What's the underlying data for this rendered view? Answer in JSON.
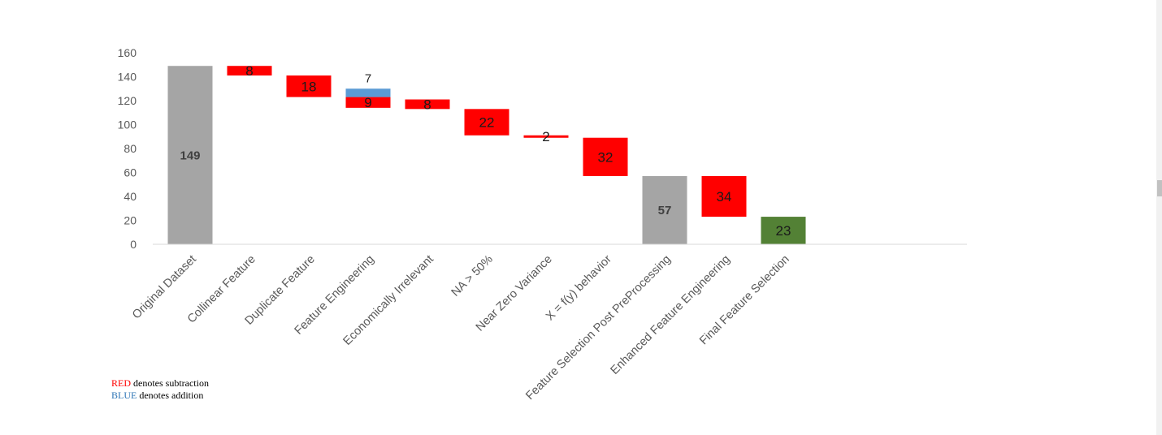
{
  "chart_data": {
    "type": "waterfall",
    "categories": [
      "Original Dataset",
      "Collinear Feature",
      "Duplicate Feature",
      "Feature Engineering",
      "Economically Irrelevant",
      "NA > 50%",
      "Near Zero Variance",
      "X = f(y) behavior",
      "Feature Selection Post PreProcessing",
      "Enhanced Feature Engineering",
      "Final Feature Selection"
    ],
    "bars": [
      {
        "category": "Original Dataset",
        "kind": "total",
        "base": 0,
        "top": 149,
        "label": "149",
        "color": "#a5a5a5"
      },
      {
        "category": "Collinear Feature",
        "kind": "decrease",
        "base": 141,
        "top": 149,
        "label": "8",
        "color": "#ff0000"
      },
      {
        "category": "Duplicate Feature",
        "kind": "decrease",
        "base": 123,
        "top": 141,
        "label": "18",
        "color": "#ff0000"
      },
      {
        "category": "Feature Engineering",
        "kind": "decrease",
        "base": 114,
        "top": 123,
        "label": "9",
        "color": "#ff0000"
      },
      {
        "category": "Feature Engineering",
        "kind": "increase",
        "base": 123,
        "top": 130,
        "label": "7",
        "color": "#5b9bd5"
      },
      {
        "category": "Economically Irrelevant",
        "kind": "decrease",
        "base": 113,
        "top": 121,
        "label": "8",
        "color": "#ff0000"
      },
      {
        "category": "NA > 50%",
        "kind": "decrease",
        "base": 91,
        "top": 113,
        "label": "22",
        "color": "#ff0000"
      },
      {
        "category": "Near Zero Variance",
        "kind": "decrease",
        "base": 89,
        "top": 91,
        "label": "2",
        "color": "#ff0000"
      },
      {
        "category": "X = f(y) behavior",
        "kind": "decrease",
        "base": 57,
        "top": 89,
        "label": "32",
        "color": "#ff0000"
      },
      {
        "category": "Feature Selection Post PreProcessing",
        "kind": "total",
        "base": 0,
        "top": 57,
        "label": "57",
        "color": "#a5a5a5"
      },
      {
        "category": "Enhanced Feature Engineering",
        "kind": "decrease",
        "base": 23,
        "top": 57,
        "label": "34",
        "color": "#ff0000"
      },
      {
        "category": "Final Feature Selection",
        "kind": "total",
        "base": 0,
        "top": 23,
        "label": "23",
        "color": "#538135"
      }
    ],
    "yticks": [
      0,
      20,
      40,
      60,
      80,
      100,
      120,
      140,
      160
    ],
    "ylim": [
      0,
      160
    ],
    "grid": false,
    "legend": "none"
  },
  "notes": {
    "red_word": "RED",
    "red_rest": " denotes subtraction",
    "blue_word": "BLUE",
    "blue_rest": " denotes addition",
    "red_color": "#ff0000",
    "blue_color": "#2e75b6"
  }
}
